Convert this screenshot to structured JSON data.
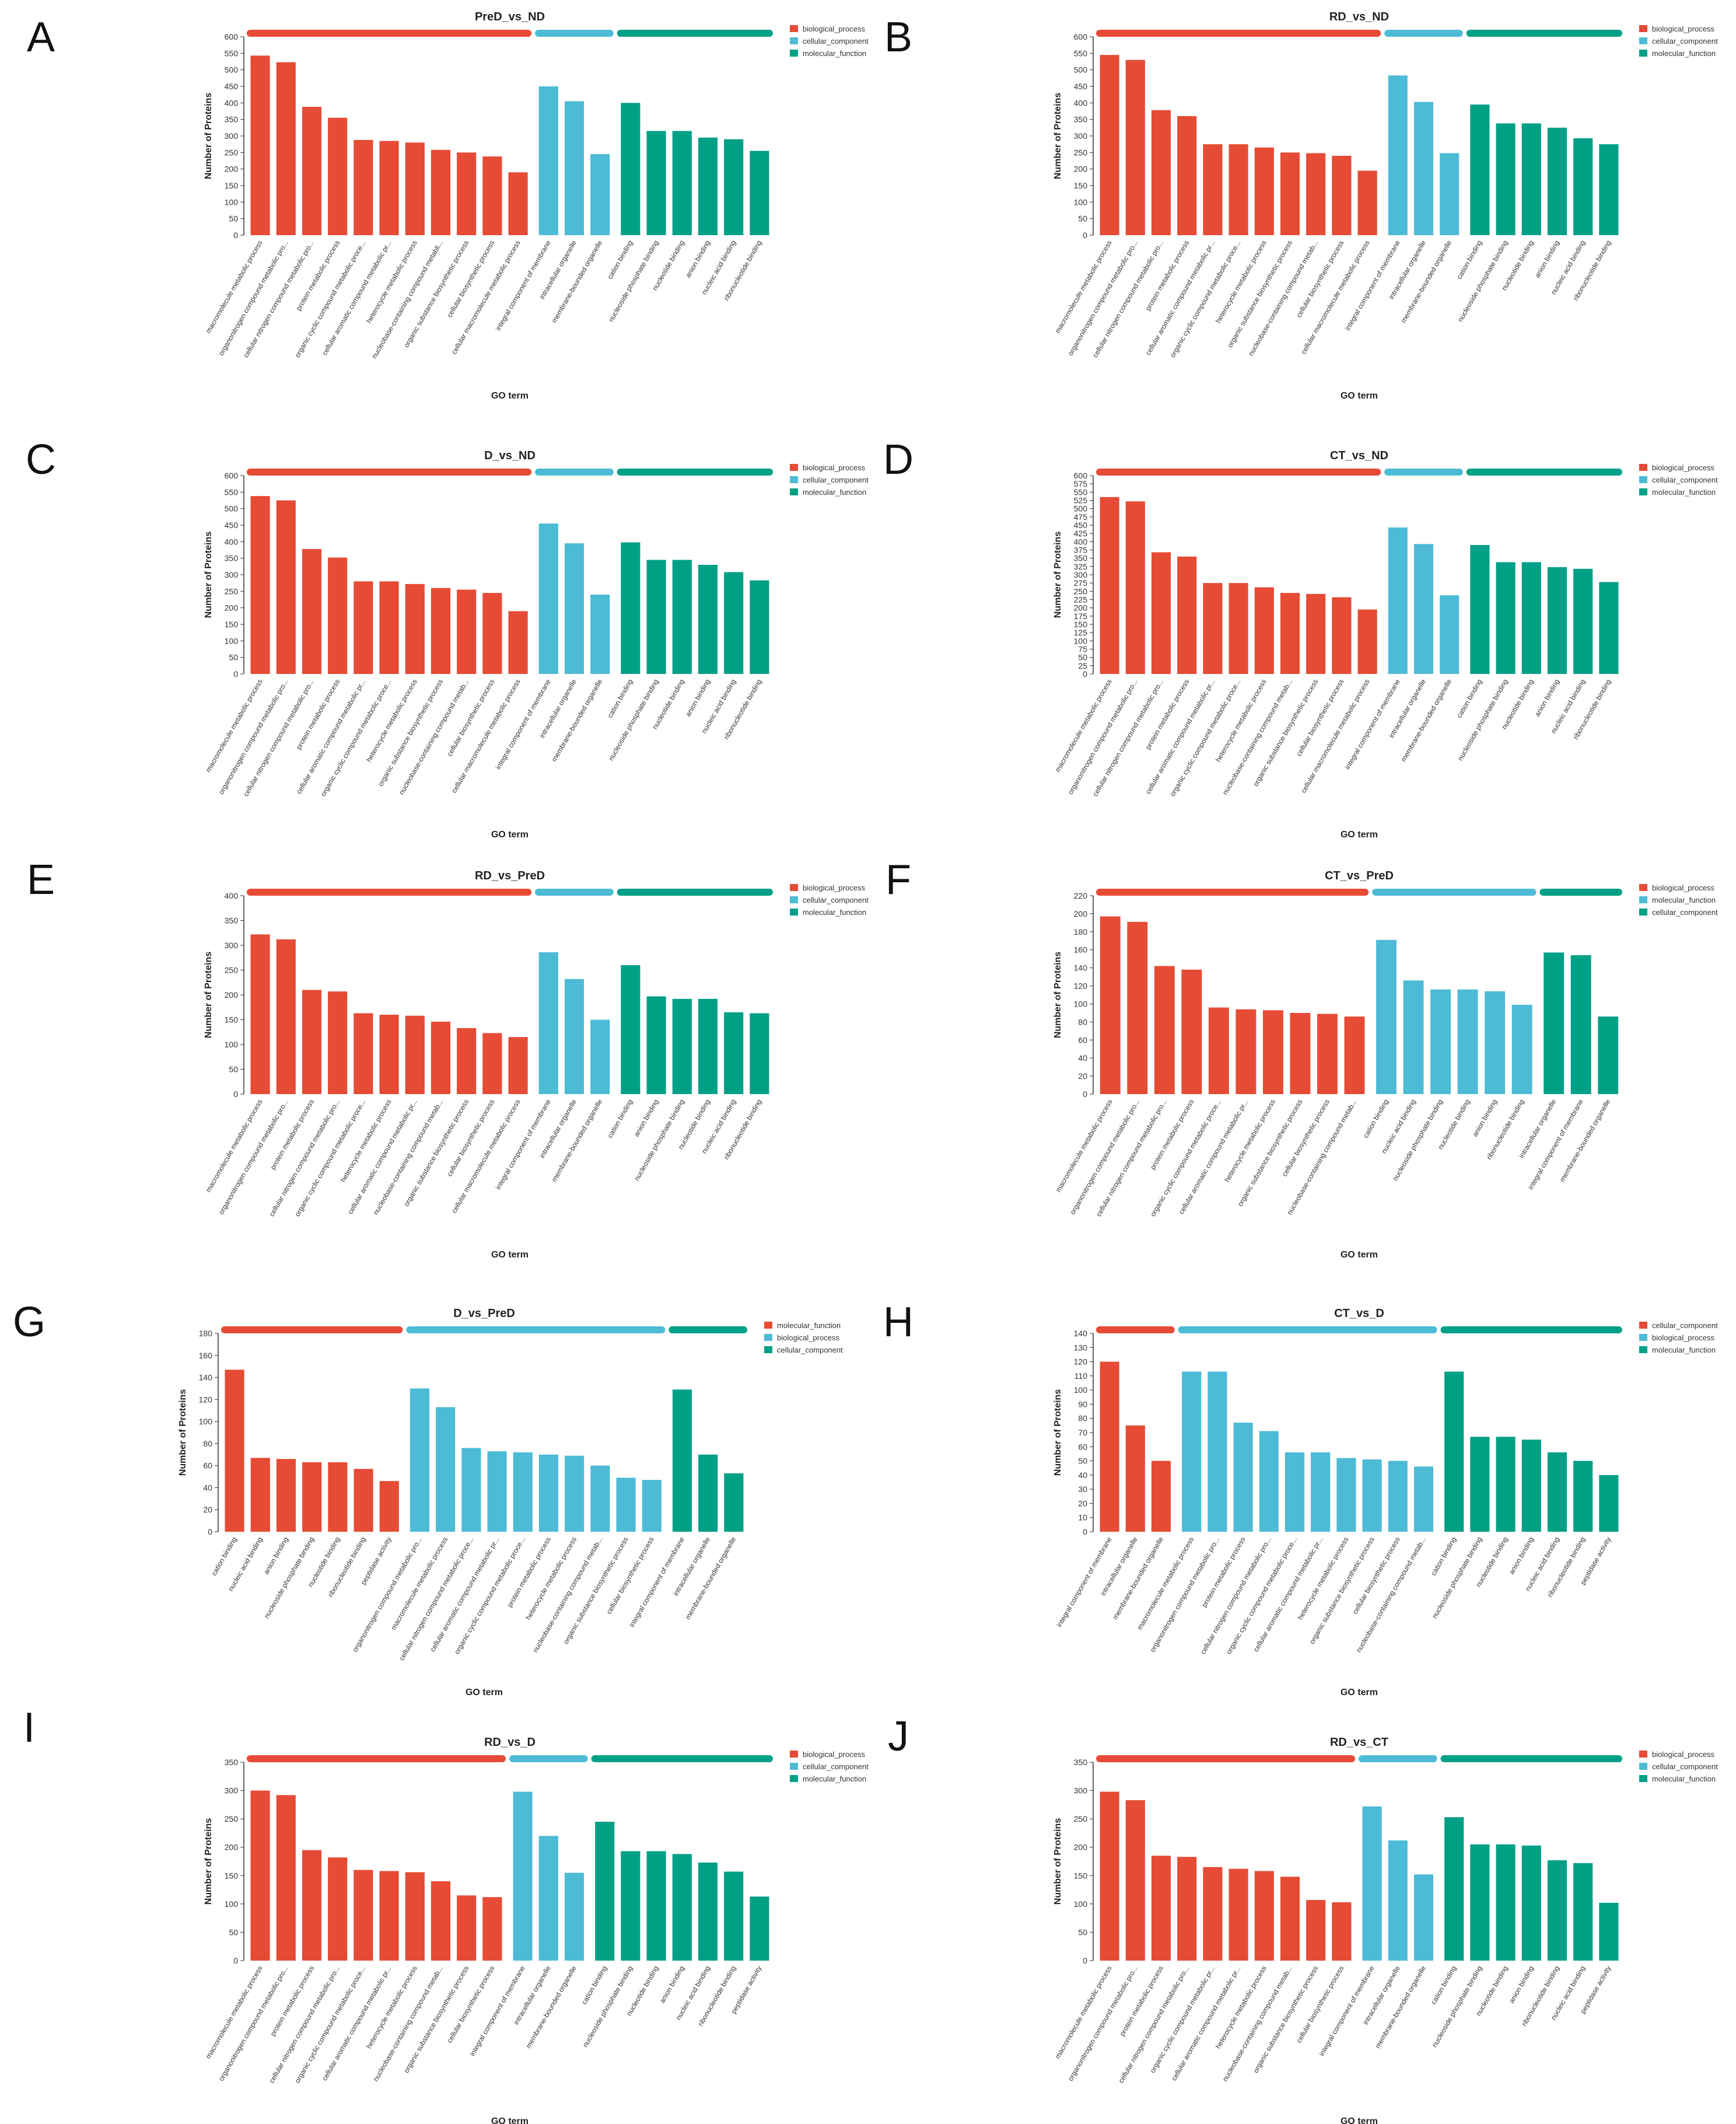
{
  "colors": {
    "red": "#e64b35",
    "blue": "#4dbbd5",
    "green": "#00a087"
  },
  "chart_data": [
    {
      "panel": "A",
      "type": "bar",
      "title": "PreD_vs_ND",
      "xlabel": "GO term",
      "ylabel": "Number of Proteins",
      "ylim": [
        0,
        600
      ],
      "ystep": 50,
      "groups": [
        {
          "name": "biological_process",
          "color": "red",
          "categories": [
            "macromolecule metabolic process",
            "organonitrogen compound metabolic pro...",
            "cellular nitrogen compound metabolic pro...",
            "protein metabolic process",
            "organic cyclic compound metabolic proce...",
            "cellular aromatic compound metabolic pr...",
            "heterocycle metabolic process",
            "nucleobase-containing compound metabli...",
            "organic substance biosynthetic process",
            "cellular biosynthetic process",
            "cellular macromolecule metabolic process"
          ],
          "values": [
            543,
            523,
            388,
            355,
            288,
            285,
            280,
            258,
            250,
            238,
            190
          ]
        },
        {
          "name": "cellular_component",
          "color": "blue",
          "categories": [
            "integral component of membrane",
            "intracellular organelle",
            "membrane-bounded organelle"
          ],
          "values": [
            450,
            405,
            245
          ]
        },
        {
          "name": "molecular_function",
          "color": "green",
          "categories": [
            "cation binding",
            "nucleoside phosphate binding",
            "nucleotide binding",
            "anion binding",
            "nucleic acid binding",
            "ribonucleotide binding"
          ],
          "values": [
            400,
            315,
            315,
            295,
            290,
            255
          ]
        }
      ]
    },
    {
      "panel": "B",
      "type": "bar",
      "title": "RD_vs_ND",
      "xlabel": "GO term",
      "ylabel": "Number of Proteins",
      "ylim": [
        0,
        600
      ],
      "ystep": 50,
      "groups": [
        {
          "name": "biological_process",
          "color": "red",
          "categories": [
            "macromolecule metabolic process",
            "organonitrogen compound metabolic pro...",
            "cellular nitrogen compound metabolic pro...",
            "protein metabolic process",
            "cellular aromatic compound metabolic pr...",
            "organic cyclic compound metabolic proce...",
            "heterocycle metabolic process",
            "organic substance biosynthetic process",
            "nucleobase-containing compound metab...",
            "cellular biosynthetic process",
            "cellular macromolecule metabolic process"
          ],
          "values": [
            545,
            530,
            378,
            360,
            275,
            275,
            265,
            250,
            248,
            240,
            195
          ]
        },
        {
          "name": "cellular_component",
          "color": "blue",
          "categories": [
            "integral component of membrane",
            "intracellular organelle",
            "membrane-bounded organelle"
          ],
          "values": [
            483,
            403,
            248
          ]
        },
        {
          "name": "molecular_function",
          "color": "green",
          "categories": [
            "cation binding",
            "nucleoside phosphate binding",
            "nucleotide binding",
            "anion binding",
            "nucleic acid binding",
            "ribonucleotide binding"
          ],
          "values": [
            395,
            338,
            338,
            325,
            293,
            275
          ]
        }
      ]
    },
    {
      "panel": "C",
      "type": "bar",
      "title": "D_vs_ND",
      "xlabel": "GO term",
      "ylabel": "Number of Proteins",
      "ylim": [
        0,
        600
      ],
      "ystep": 50,
      "groups": [
        {
          "name": "biological_process",
          "color": "red",
          "categories": [
            "macromolecule metabolic process",
            "organonitrogen compound metabolic pro...",
            "cellular nitrogen compound metabolic pro...",
            "protein metabolic process",
            "cellular aromatic compound metabolic pr...",
            "organic cyclic compound metabolic proce...",
            "heterocycle metabolic process",
            "organic substance biosynthetic process",
            "nucleobase-containing compound metab...",
            "cellular biosynthetic process",
            "cellular macromolecule metabolic process"
          ],
          "values": [
            538,
            525,
            378,
            352,
            280,
            280,
            272,
            260,
            255,
            245,
            190
          ]
        },
        {
          "name": "cellular_component",
          "color": "blue",
          "categories": [
            "integral component of membrane",
            "intracellular organelle",
            "membrane-bounded organelle"
          ],
          "values": [
            455,
            395,
            240
          ]
        },
        {
          "name": "molecular_function",
          "color": "green",
          "categories": [
            "cation binding",
            "nucleoside phosphate binding",
            "nucleotide binding",
            "anion binding",
            "nucleic acid binding",
            "ribonucleotide binding"
          ],
          "values": [
            398,
            345,
            345,
            330,
            308,
            283
          ]
        }
      ]
    },
    {
      "panel": "D",
      "type": "bar",
      "title": "CT_vs_ND",
      "xlabel": "GO term",
      "ylabel": "Number of Proteins",
      "ylim": [
        0,
        600
      ],
      "ystep": 25,
      "groups": [
        {
          "name": "biological_process",
          "color": "red",
          "categories": [
            "macromolecule metabolic process",
            "organonitrogen compound metabolic pro...",
            "cellular nitrogen compound metabolic pro...",
            "protein metabolic process",
            "cellular aromatic compound metabolic pr...",
            "organic cyclic compound metabolic proce...",
            "heterocycle metabolic process",
            "nucleobase-containing compound metab...",
            "organic substance biosynthetic process",
            "cellular biosynthetic process",
            "cellular macromolecule metabolic process"
          ],
          "values": [
            535,
            522,
            368,
            355,
            275,
            275,
            262,
            245,
            242,
            232,
            195
          ]
        },
        {
          "name": "cellular_component",
          "color": "blue",
          "categories": [
            "integral component of membrane",
            "intracellular organelle",
            "membrane-bounded organelle"
          ],
          "values": [
            443,
            393,
            238
          ]
        },
        {
          "name": "molecular_function",
          "color": "green",
          "categories": [
            "cation binding",
            "nucleoside phosphate binding",
            "nucleotide binding",
            "anion binding",
            "nucleic acid binding",
            "ribonucleotide binding"
          ],
          "values": [
            390,
            338,
            338,
            323,
            318,
            278
          ]
        }
      ]
    },
    {
      "panel": "E",
      "type": "bar",
      "title": "RD_vs_PreD",
      "xlabel": "GO term",
      "ylabel": "Number of Proteins",
      "ylim": [
        0,
        400
      ],
      "ystep": 50,
      "groups": [
        {
          "name": "biological_process",
          "color": "red",
          "categories": [
            "macromolecule metabolic process",
            "organonitrogen compound metabolic pro...",
            "protein metabolic process",
            "cellular nitrogen compound metabolic pro...",
            "organic cyclic compound metabolic proce...",
            "heterocycle metabolic process",
            "cellular aromatic compound metabolic pr...",
            "nucleobase-containing compound metab...",
            "organic substance biosynthetic process",
            "cellular biosynthetic process",
            "cellular macromolecule metabolic process"
          ],
          "values": [
            322,
            312,
            210,
            207,
            163,
            160,
            158,
            146,
            133,
            123,
            115
          ]
        },
        {
          "name": "cellular_component",
          "color": "blue",
          "categories": [
            "integral component of membrane",
            "intracellular organelle",
            "membrane-bounded organelle"
          ],
          "values": [
            286,
            232,
            150
          ]
        },
        {
          "name": "molecular_function",
          "color": "green",
          "categories": [
            "cation binding",
            "anion binding",
            "nucleoside phosphate binding",
            "nucleotide binding",
            "nucleic acid binding",
            "ribonucleotide binding"
          ],
          "values": [
            260,
            197,
            192,
            192,
            165,
            163
          ]
        }
      ]
    },
    {
      "panel": "F",
      "type": "bar",
      "title": "CT_vs_PreD",
      "xlabel": "GO term",
      "ylabel": "Number of Proteins",
      "ylim": [
        0,
        220
      ],
      "ystep": 20,
      "groups": [
        {
          "name": "biological_process",
          "color": "red",
          "categories": [
            "macromolecule metabolic process",
            "organonitrogen compound metabolic pro...",
            "cellular nitrogen compound metabolic pro...",
            "protein metabolic process",
            "organic cyclic compound metabolic proce...",
            "cellular aromatic compound metabolic pr...",
            "heterocycle metabolic process",
            "organic substance biosynthetic process",
            "cellular biosynthetic process",
            "nucleobase-containing compound metab..."
          ],
          "values": [
            197,
            191,
            142,
            138,
            96,
            94,
            93,
            90,
            89,
            86
          ]
        },
        {
          "name": "molecular_function",
          "color": "blue",
          "categories": [
            "cation binding",
            "nucleic acid binding",
            "nucleoside phosphate binding",
            "nucleotide binding",
            "anion binding",
            "ribonucleotide binding"
          ],
          "values": [
            171,
            126,
            116,
            116,
            114,
            99
          ]
        },
        {
          "name": "cellular_component",
          "color": "green",
          "categories": [
            "intracellular organelle",
            "integral component of membrane",
            "membrane-bounded organelle"
          ],
          "values": [
            157,
            154,
            86
          ]
        }
      ]
    },
    {
      "panel": "G",
      "type": "bar",
      "title": "D_vs_PreD",
      "xlabel": "GO term",
      "ylabel": "Number of Proteins",
      "ylim": [
        0,
        180
      ],
      "ystep": 20,
      "groups": [
        {
          "name": "molecular_function",
          "color": "red",
          "categories": [
            "cation binding",
            "nucleic acid binding",
            "anion binding",
            "nucleoside phosphate binding",
            "nucleotide binding",
            "ribonucleotide binding",
            "peptidase activity"
          ],
          "values": [
            147,
            67,
            66,
            63,
            63,
            57,
            46
          ]
        },
        {
          "name": "biological_process",
          "color": "blue",
          "categories": [
            "organonitrogen compound metabolic pro...",
            "macromolecule metabolic process",
            "cellular nitrogen compound metabolic proce...",
            "cellular aromatic compound metabolic pr...",
            "organic cyclic compound metabolic proce...",
            "protein metabolic process",
            "heterocycle metabolic process",
            "nucleobase-containing compound metab...",
            "organic substance biosynthetic process",
            "cellular biosynthetic process"
          ],
          "values": [
            130,
            113,
            76,
            73,
            72,
            70,
            69,
            60,
            49,
            47
          ]
        },
        {
          "name": "cellular_component",
          "color": "green",
          "categories": [
            "integral component of membrane",
            "intracellular organelle",
            "membrane-bounded organelle"
          ],
          "values": [
            129,
            70,
            53
          ]
        }
      ]
    },
    {
      "panel": "H",
      "type": "bar",
      "title": "CT_vs_D",
      "xlabel": "GO term",
      "ylabel": "Number of Proteins",
      "ylim": [
        0,
        140
      ],
      "ystep": 10,
      "groups": [
        {
          "name": "cellular_component",
          "color": "red",
          "categories": [
            "integral component of membrane",
            "intracellular organelle",
            "membrane-bounded organelle"
          ],
          "values": [
            120,
            75,
            50
          ]
        },
        {
          "name": "biological_process",
          "color": "blue",
          "categories": [
            "macromolecule metabolic process",
            "organonitrogen compound metabolic pro...",
            "protein metabolic process",
            "cellular nitrogen compound metabolic pro...",
            "organic cyclic compound metabolic proce...",
            "cellular aromatic compound metabolic pr...",
            "heterocycle metabolic process",
            "organic substance biosynthetic process",
            "cellular biosynthetic process",
            "nucleobase-containing compound metab..."
          ],
          "values": [
            113,
            113,
            77,
            71,
            56,
            56,
            52,
            51,
            50,
            46
          ]
        },
        {
          "name": "molecular_function",
          "color": "green",
          "categories": [
            "cation binding",
            "nucleoside phosphate binding",
            "nucleotide binding",
            "anion binding",
            "nucleic acid binding",
            "ribonucleotide binding",
            "peptidase activity"
          ],
          "values": [
            113,
            67,
            67,
            65,
            56,
            50,
            40
          ]
        }
      ]
    },
    {
      "panel": "I",
      "type": "bar",
      "title": "RD_vs_D",
      "xlabel": "GO term",
      "ylabel": "Number of Proteins",
      "ylim": [
        0,
        350
      ],
      "ystep": 50,
      "groups": [
        {
          "name": "biological_process",
          "color": "red",
          "categories": [
            "macromolecule metabolic process",
            "organonitrogen compound metabolic pro...",
            "protein metabolic process",
            "cellular nitrogen compound metabolic pro...",
            "organic cyclic compound metabolic proce...",
            "cellular aromatic compound metabolic pr...",
            "heterocycle metabolic process",
            "nucleobase-containing compound metab...",
            "organic substance biosynthetic process",
            "cellular biosynthetic process"
          ],
          "values": [
            300,
            292,
            195,
            182,
            160,
            158,
            156,
            140,
            115,
            112
          ]
        },
        {
          "name": "cellular_component",
          "color": "blue",
          "categories": [
            "integral component of membrane",
            "intracellular organelle",
            "membrane-bounded organelle"
          ],
          "values": [
            298,
            220,
            155
          ]
        },
        {
          "name": "molecular_function",
          "color": "green",
          "categories": [
            "cation binding",
            "nucleoside phosphate binding",
            "nucleotide binding",
            "anion binding",
            "nucleic acid binding",
            "ribonucleotide binding",
            "peptidase activity"
          ],
          "values": [
            245,
            193,
            193,
            188,
            173,
            157,
            113
          ]
        }
      ]
    },
    {
      "panel": "J",
      "type": "bar",
      "title": "RD_vs_CT",
      "xlabel": "GO term",
      "ylabel": "Number of Proteins",
      "ylim": [
        0,
        350
      ],
      "ystep": 50,
      "groups": [
        {
          "name": "biological_process",
          "color": "red",
          "categories": [
            "macromolecule metabolic process",
            "organonitrogen compound metabolic pro...",
            "protein metabolic process",
            "cellular nitrogen compound metabolic pro...",
            "organic cyclic compound metabolic pr...",
            "cellular aromatic compound metabolic pr...",
            "heterocycle metabolic process",
            "nucleobase-containing compound metab...",
            "organic substance biosynthetic process",
            "cellular biosynthetic process"
          ],
          "values": [
            298,
            283,
            185,
            183,
            165,
            162,
            158,
            148,
            107,
            103
          ]
        },
        {
          "name": "cellular_component",
          "color": "blue",
          "categories": [
            "integral component of membrane",
            "intracellular organelle",
            "membrane-bounded organelle"
          ],
          "values": [
            272,
            212,
            152
          ]
        },
        {
          "name": "molecular_function",
          "color": "green",
          "categories": [
            "cation binding",
            "nucleoside phosphate binding",
            "nucleotide binding",
            "anion binding",
            "ribonucleotide binding",
            "nucleic acid binding",
            "peptidase activity"
          ],
          "values": [
            253,
            205,
            205,
            203,
            177,
            172,
            102
          ]
        }
      ]
    }
  ]
}
